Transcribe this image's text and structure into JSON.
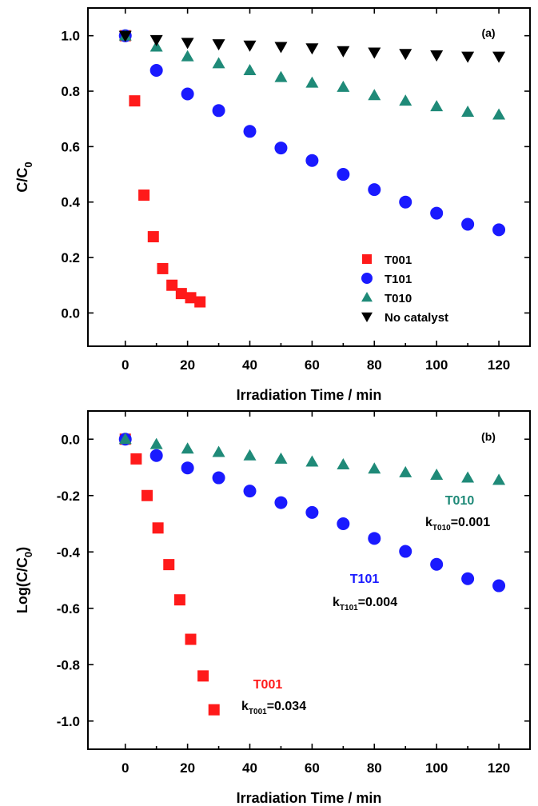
{
  "chart_data": [
    {
      "type": "scatter",
      "panel_label": "(a)",
      "xlabel": "Irradiation Time / min",
      "ylabel_main": "C/C",
      "ylabel_sub": "0",
      "xlim": [
        -12,
        130
      ],
      "ylim": [
        -0.12,
        1.1
      ],
      "xticks": [
        0,
        20,
        40,
        60,
        80,
        100,
        120
      ],
      "yticks": [
        0.0,
        0.2,
        0.4,
        0.6,
        0.8,
        1.0
      ],
      "ytick_labels": [
        "0.0",
        "0.2",
        "0.4",
        "0.6",
        "0.8",
        "1.0"
      ],
      "legend_position": "bottom-right",
      "series": [
        {
          "name": "T001",
          "marker": "square",
          "color": "#ff1a1a",
          "x": [
            0,
            3,
            6,
            9,
            12,
            15,
            18,
            21,
            24
          ],
          "y": [
            1.0,
            0.765,
            0.425,
            0.275,
            0.16,
            0.1,
            0.07,
            0.055,
            0.04
          ]
        },
        {
          "name": "T101",
          "marker": "circle",
          "color": "#1a1aff",
          "x": [
            0,
            10,
            20,
            30,
            40,
            50,
            60,
            70,
            80,
            90,
            100,
            110,
            120
          ],
          "y": [
            1.0,
            0.875,
            0.79,
            0.73,
            0.655,
            0.595,
            0.55,
            0.5,
            0.445,
            0.4,
            0.36,
            0.32,
            0.3
          ]
        },
        {
          "name": "T010",
          "marker": "triangle-up",
          "color": "#1f8a78",
          "x": [
            0,
            10,
            20,
            30,
            40,
            50,
            60,
            70,
            80,
            90,
            100,
            110,
            120
          ],
          "y": [
            1.0,
            0.96,
            0.925,
            0.9,
            0.875,
            0.85,
            0.83,
            0.815,
            0.785,
            0.765,
            0.745,
            0.725,
            0.715
          ]
        },
        {
          "name": "No catalyst",
          "marker": "triangle-down",
          "color": "#000000",
          "x": [
            0,
            10,
            20,
            30,
            40,
            50,
            60,
            70,
            80,
            90,
            100,
            110,
            120
          ],
          "y": [
            1.0,
            0.985,
            0.975,
            0.97,
            0.965,
            0.96,
            0.955,
            0.945,
            0.94,
            0.935,
            0.93,
            0.925,
            0.925
          ]
        }
      ]
    },
    {
      "type": "scatter",
      "panel_label": "(b)",
      "xlabel": "Irradiation Time / min",
      "ylabel_main": "Log(C/C",
      "ylabel_sub": "0",
      "ylabel_tail": ")",
      "xlim": [
        -12,
        130
      ],
      "ylim": [
        -1.1,
        0.1
      ],
      "xticks": [
        0,
        20,
        40,
        60,
        80,
        100,
        120
      ],
      "yticks": [
        0.0,
        -0.2,
        -0.4,
        -0.6,
        -0.8,
        -1.0
      ],
      "ytick_labels": [
        "0.0",
        "-0.2",
        "-0.4",
        "-0.6",
        "-0.8",
        "-1.0"
      ],
      "series": [
        {
          "name": "T001",
          "marker": "square",
          "color": "#ff1a1a",
          "x": [
            0,
            3.5,
            7,
            10.5,
            14,
            17.5,
            21,
            25,
            28.5
          ],
          "y": [
            0.0,
            -0.07,
            -0.2,
            -0.315,
            -0.445,
            -0.57,
            -0.71,
            -0.84,
            -0.96
          ]
        },
        {
          "name": "T101",
          "marker": "circle",
          "color": "#1a1aff",
          "x": [
            0,
            10,
            20,
            30,
            40,
            50,
            60,
            70,
            80,
            90,
            100,
            110,
            120
          ],
          "y": [
            0.0,
            -0.058,
            -0.102,
            -0.137,
            -0.184,
            -0.225,
            -0.26,
            -0.3,
            -0.352,
            -0.398,
            -0.444,
            -0.495,
            -0.52
          ]
        },
        {
          "name": "T010",
          "marker": "triangle-up",
          "color": "#1f8a78",
          "x": [
            0,
            10,
            20,
            30,
            40,
            50,
            60,
            70,
            80,
            90,
            100,
            110,
            120
          ],
          "y": [
            0.0,
            -0.018,
            -0.034,
            -0.046,
            -0.058,
            -0.07,
            -0.08,
            -0.09,
            -0.105,
            -0.118,
            -0.127,
            -0.137,
            -0.145
          ]
        }
      ],
      "annotations": [
        {
          "name": "T010",
          "color": "#1f8a78",
          "k_sub": "T010",
          "k_value": "=0.001"
        },
        {
          "name": "T101",
          "color": "#1a1aff",
          "k_sub": "T101",
          "k_value": "=0.004"
        },
        {
          "name": "T001",
          "color": "#ff1a1a",
          "k_sub": "T001",
          "k_value": "=0.034"
        }
      ]
    }
  ]
}
